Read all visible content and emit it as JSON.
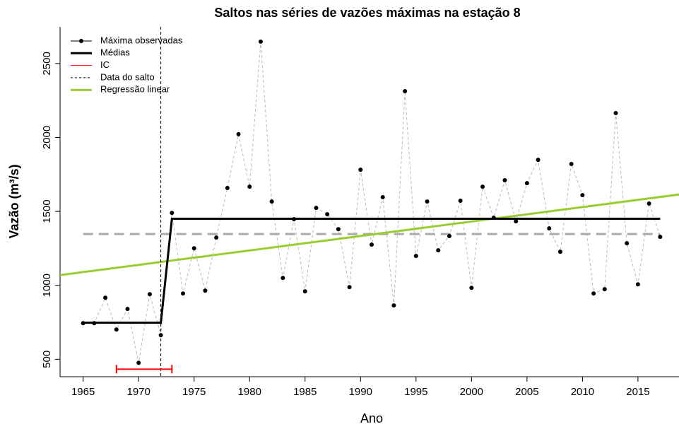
{
  "chart_data": {
    "type": "line",
    "title": "Saltos nas séries de vazões máximas na estação 8",
    "x_label": "Ano",
    "y_label": "Vazão (m³/s)",
    "x": [
      1965,
      1966,
      1967,
      1968,
      1969,
      1970,
      1971,
      1972,
      1973,
      1974,
      1975,
      1976,
      1977,
      1978,
      1979,
      1980,
      1981,
      1982,
      1983,
      1984,
      1985,
      1986,
      1987,
      1988,
      1989,
      1990,
      1991,
      1992,
      1993,
      1994,
      1995,
      1996,
      1997,
      1998,
      1999,
      2000,
      2001,
      2002,
      2003,
      2004,
      2005,
      2006,
      2007,
      2008,
      2009,
      2010,
      2011,
      2012,
      2013,
      2014,
      2015,
      2016,
      2017
    ],
    "series": [
      {
        "name": "Máxima observadas",
        "color": "#000000",
        "line_color": "#bbbbbb",
        "values": [
          744,
          744,
          916,
          701,
          840,
          476,
          940,
          663,
          1490,
          945,
          1251,
          964,
          1323,
          1658,
          2022,
          1667,
          2648,
          1567,
          1050,
          1447,
          959,
          1524,
          1481,
          1380,
          988,
          1782,
          1275,
          1596,
          864,
          2313,
          1199,
          1567,
          1237,
          1333,
          1572,
          983,
          1667,
          1457,
          1711,
          1433,
          1691,
          1849,
          1385,
          1227,
          1821,
          1610,
          945,
          974,
          2165,
          1285,
          1007,
          1553,
          1328
        ]
      },
      {
        "name": "Médias",
        "color": "#000000",
        "x": [
          1965,
          1972,
          1973,
          2017
        ],
        "values": [
          747,
          747,
          1450,
          1450
        ]
      },
      {
        "name": "IC",
        "color": "#ff0000",
        "x": [
          1968,
          1973
        ],
        "values": [
          433,
          433
        ]
      },
      {
        "name": "Data do salto",
        "color": "#000000",
        "x": 1972
      },
      {
        "name": "Regressão linear",
        "color": "#9acd32",
        "x": [
          1962.92,
          2019.08
        ],
        "values": [
          1069,
          1618
        ]
      }
    ],
    "mean_line": {
      "value": 1347,
      "color": "#aaaaaa",
      "x": [
        1965,
        2017
      ]
    },
    "xlim": [
      1962.92,
      2019.08
    ],
    "ylim": [
      382,
      2748
    ],
    "xticks": [
      1965,
      1970,
      1975,
      1980,
      1985,
      1990,
      1995,
      2000,
      2005,
      2010,
      2015
    ],
    "yticks": [
      500,
      1000,
      1500,
      2000,
      2500
    ],
    "legend": "top-left"
  }
}
